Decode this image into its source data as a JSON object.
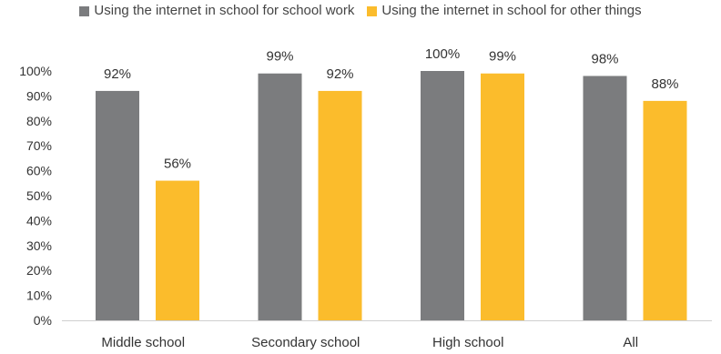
{
  "chart_data": {
    "type": "bar",
    "categories": [
      "Middle school",
      "Secondary school",
      "High school",
      "All"
    ],
    "series": [
      {
        "name": "Using the internet in school for school work",
        "color": "#7b7c7e",
        "values": [
          92,
          99,
          100,
          98
        ]
      },
      {
        "name": "Using the internet in school for other things",
        "color": "#fbbc2c",
        "values": [
          56,
          92,
          99,
          88
        ]
      }
    ],
    "data_labels": [
      [
        "92%",
        "99%",
        "100%",
        "98%"
      ],
      [
        "56%",
        "92%",
        "99%",
        "88%"
      ]
    ],
    "y_ticks": [
      "0%",
      "10%",
      "20%",
      "30%",
      "40%",
      "50%",
      "60%",
      "70%",
      "80%",
      "90%",
      "100%"
    ],
    "ylim": [
      0,
      100
    ],
    "legend_position": "top",
    "grid": false
  }
}
